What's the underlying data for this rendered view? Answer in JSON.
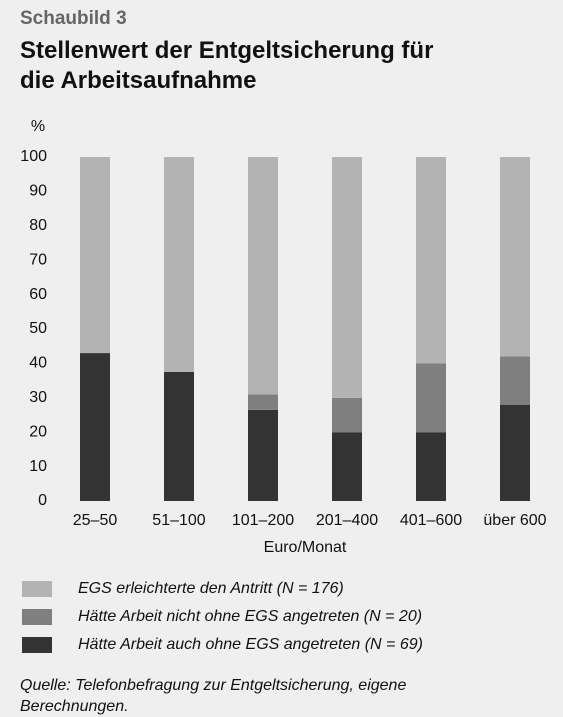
{
  "chart_data": {
    "type": "stacked-bar",
    "label": "Schaubild 3",
    "title": "Stellenwert der Entgeltsicherung für die Arbeitsaufnahme",
    "y_label": "%",
    "x_label": "Euro/Monat",
    "categories": [
      "25–50",
      "51–100",
      "101–200",
      "201–400",
      "401–600",
      "über 600"
    ],
    "series": [
      {
        "name": "EGS erleichterte den Antritt (N = 176)",
        "color": "#b3b3b3",
        "values": [
          57,
          62.5,
          69,
          70,
          60,
          58
        ]
      },
      {
        "name": "Hätte Arbeit nicht ohne EGS angetreten (N = 20)",
        "color": "#7f7f7f",
        "values": [
          0,
          0,
          4.5,
          10,
          20,
          14
        ]
      },
      {
        "name": "Hätte Arbeit auch ohne EGS angetreten (N = 69)",
        "color": "#333333",
        "values": [
          43,
          37.5,
          26.5,
          20,
          20,
          28
        ]
      }
    ],
    "ylim": [
      0,
      100
    ],
    "yticks": [
      0,
      10,
      20,
      30,
      40,
      50,
      60,
      70,
      80,
      90,
      100
    ],
    "legend": "bottom",
    "source": "Quelle: Telefonbefragung zur Entgeltsicherung, eigene Berechnungen."
  }
}
